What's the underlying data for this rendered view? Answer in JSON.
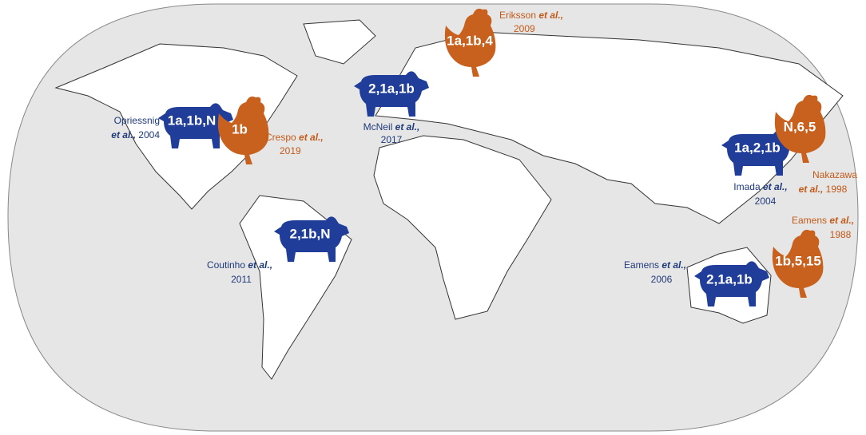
{
  "annotations": [
    {
      "label": "1a,1b,N",
      "citation": {
        "author": "Opriessnig",
        "etal": "et al.,",
        "year": "2004"
      }
    },
    {
      "label": "1b",
      "citation": {
        "author": "Crespo",
        "etal": "et al.,",
        "year": "2019"
      }
    },
    {
      "label": "1a,1b,4",
      "citation": {
        "author": "Eriksson",
        "etal": "et al.,",
        "year": "2009"
      }
    },
    {
      "label": "2,1a,1b",
      "citation": {
        "author": "McNeil",
        "etal": "et al.,",
        "year": "2017"
      }
    },
    {
      "label": "1a,2,1b",
      "citation": {
        "author": "Imada",
        "etal": "et al.,",
        "year": "2004"
      }
    },
    {
      "label": "N,6,5",
      "citation": {
        "author": "Nakazawa",
        "etal": "et al.,",
        "year": "1998"
      }
    },
    {
      "label": "2,1b,N",
      "citation": {
        "author": "Coutinho",
        "etal": "et al.,",
        "year": "2011"
      }
    },
    {
      "label": "1b,5,15",
      "citation": {
        "author": "Eamens",
        "etal": "et al.,",
        "year": "1988"
      }
    },
    {
      "label": "2,1a,1b",
      "citation": {
        "author": "Eamens",
        "etal": "et al.,",
        "year": "2006"
      }
    }
  ]
}
